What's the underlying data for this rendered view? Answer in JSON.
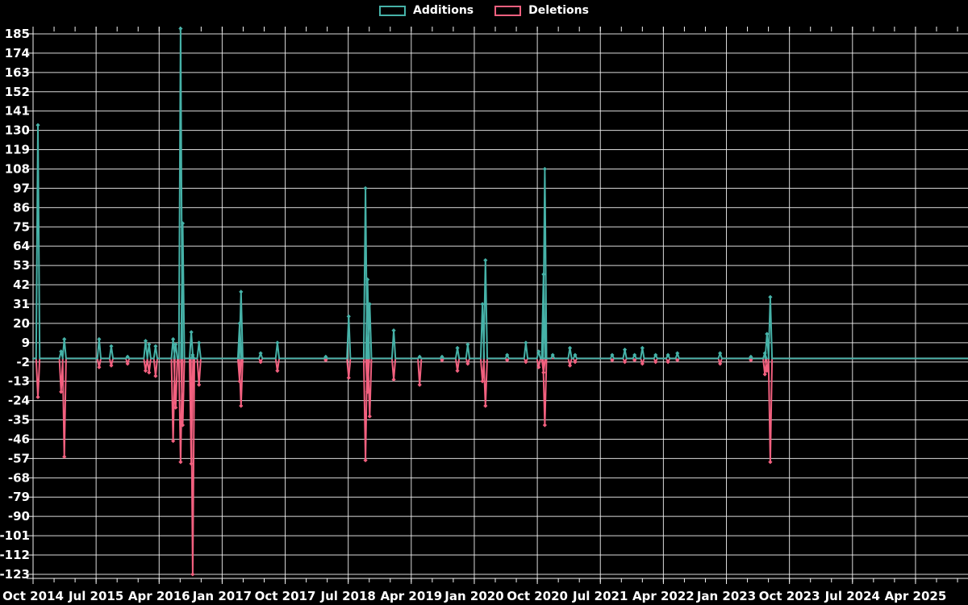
{
  "legend": {
    "additions_label": "Additions",
    "deletions_label": "Deletions"
  },
  "colors": {
    "background": "#000000",
    "grid": "#f2f2f2",
    "text": "#ffffff",
    "additions": "#46b2a8",
    "deletions": "#f2607f"
  },
  "chart_data": {
    "type": "line",
    "title": "",
    "xlabel": "",
    "ylabel": "",
    "legend_position": "top-center",
    "grid": true,
    "baseline": 0,
    "y_axis": {
      "min": -123,
      "max": 185,
      "step": 11,
      "ticks": [
        185,
        174,
        163,
        152,
        141,
        130,
        119,
        108,
        97,
        86,
        75,
        64,
        53,
        42,
        31,
        20,
        9,
        -2,
        -13,
        -24,
        -35,
        -46,
        -57,
        -68,
        -79,
        -90,
        -101,
        -112,
        -123
      ]
    },
    "x_axis": {
      "start": "2014-10-01",
      "end": "2025-11-15",
      "major_tick_interval_months": 9,
      "minor_tick_interval_months": 3,
      "tick_labels": [
        "Oct 2014",
        "Jul 2015",
        "Apr 2016",
        "Jan 2017",
        "Oct 2017",
        "Jul 2018",
        "Apr 2019",
        "Jan 2020",
        "Oct 2020",
        "Jul 2021",
        "Apr 2022",
        "Jan 2023",
        "Oct 2023",
        "Jul 2024",
        "Apr 2025"
      ]
    },
    "series": [
      {
        "name": "Additions",
        "key": "additions",
        "color": "#46b2a8"
      },
      {
        "name": "Deletions",
        "key": "deletions",
        "color": "#f2607f"
      }
    ],
    "events": [
      {
        "date": "2014-10-22",
        "additions": 133,
        "deletions": -22
      },
      {
        "date": "2015-02-01",
        "additions": 4,
        "deletions": -19
      },
      {
        "date": "2015-02-15",
        "additions": 11,
        "deletions": -56
      },
      {
        "date": "2015-07-14",
        "additions": 11,
        "deletions": -5
      },
      {
        "date": "2015-09-06",
        "additions": 7,
        "deletions": -4
      },
      {
        "date": "2015-11-16",
        "additions": 1,
        "deletions": -3
      },
      {
        "date": "2016-02-03",
        "additions": 10,
        "deletions": -7
      },
      {
        "date": "2016-02-18",
        "additions": 8,
        "deletions": -8
      },
      {
        "date": "2016-03-16",
        "additions": 7,
        "deletions": -10
      },
      {
        "date": "2016-06-01",
        "additions": 11,
        "deletions": -47
      },
      {
        "date": "2016-06-12",
        "additions": 8,
        "deletions": -28
      },
      {
        "date": "2016-07-03",
        "additions": 188,
        "deletions": -59
      },
      {
        "date": "2016-07-12",
        "additions": 77,
        "deletions": -38
      },
      {
        "date": "2016-08-19",
        "additions": 15,
        "deletions": -60
      },
      {
        "date": "2016-08-25",
        "additions": 2,
        "deletions": -123
      },
      {
        "date": "2016-09-22",
        "additions": 9,
        "deletions": -15
      },
      {
        "date": "2017-03-16",
        "additions": 20,
        "deletions": -13
      },
      {
        "date": "2017-03-22",
        "additions": 38,
        "deletions": -27
      },
      {
        "date": "2017-06-16",
        "additions": 3,
        "deletions": -2
      },
      {
        "date": "2017-08-28",
        "additions": 9,
        "deletions": -7
      },
      {
        "date": "2018-03-25",
        "additions": 1,
        "deletions": -1
      },
      {
        "date": "2018-07-03",
        "additions": 24,
        "deletions": -11
      },
      {
        "date": "2018-09-15",
        "additions": 97,
        "deletions": -58
      },
      {
        "date": "2018-09-24",
        "additions": 45,
        "deletions": -19
      },
      {
        "date": "2018-10-03",
        "additions": 31,
        "deletions": -33
      },
      {
        "date": "2019-01-16",
        "additions": 16,
        "deletions": -12
      },
      {
        "date": "2019-05-07",
        "additions": 1,
        "deletions": -15
      },
      {
        "date": "2019-08-13",
        "additions": 1,
        "deletions": -1
      },
      {
        "date": "2019-10-19",
        "additions": 6,
        "deletions": -7
      },
      {
        "date": "2019-12-03",
        "additions": 8,
        "deletions": -3
      },
      {
        "date": "2020-02-06",
        "additions": 31,
        "deletions": -13
      },
      {
        "date": "2020-02-19",
        "additions": 56,
        "deletions": -27
      },
      {
        "date": "2020-05-22",
        "additions": 2,
        "deletions": -1
      },
      {
        "date": "2020-08-12",
        "additions": 9,
        "deletions": -2
      },
      {
        "date": "2020-10-07",
        "additions": 4,
        "deletions": -5
      },
      {
        "date": "2020-10-28",
        "additions": 48,
        "deletions": -8
      },
      {
        "date": "2020-11-03",
        "additions": 108,
        "deletions": -38
      },
      {
        "date": "2020-12-07",
        "additions": 2,
        "deletions": 0
      },
      {
        "date": "2021-02-21",
        "additions": 6,
        "deletions": -4
      },
      {
        "date": "2021-03-13",
        "additions": 2,
        "deletions": -2
      },
      {
        "date": "2021-08-22",
        "additions": 2,
        "deletions": -1
      },
      {
        "date": "2021-10-16",
        "additions": 5,
        "deletions": -2
      },
      {
        "date": "2021-11-28",
        "additions": 2,
        "deletions": -1
      },
      {
        "date": "2022-01-01",
        "additions": 6,
        "deletions": -3
      },
      {
        "date": "2022-02-28",
        "additions": 2,
        "deletions": -2
      },
      {
        "date": "2022-04-21",
        "additions": 2,
        "deletions": -2
      },
      {
        "date": "2022-06-01",
        "additions": 3,
        "deletions": -1
      },
      {
        "date": "2022-12-04",
        "additions": 3,
        "deletions": -3
      },
      {
        "date": "2023-04-16",
        "additions": 1,
        "deletions": -1
      },
      {
        "date": "2023-06-16",
        "additions": 3,
        "deletions": -9
      },
      {
        "date": "2023-06-25",
        "additions": 14,
        "deletions": -7
      },
      {
        "date": "2023-07-09",
        "additions": 35,
        "deletions": -59
      }
    ]
  }
}
